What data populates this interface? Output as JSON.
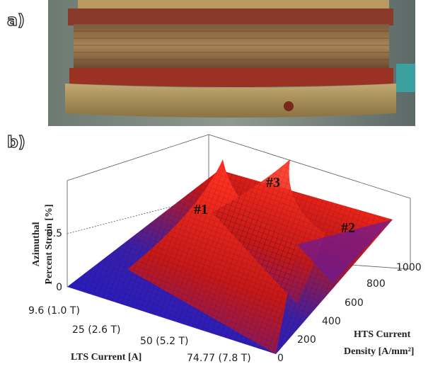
{
  "panels": [
    {
      "label": "a)"
    },
    {
      "label": "b)",
      "z_axis": {
        "title": [
          "Azimuthal",
          "Percent Strain [%]"
        ],
        "ticks": [
          "0.5",
          "0"
        ]
      },
      "x_axis": {
        "title": "LTS Current [A]",
        "ticks": [
          "9.6 (1.0 T)",
          "25 (2.6 T)",
          "50 (5.2 T)",
          "74.77 (7.8 T)"
        ]
      },
      "y_axis": {
        "title": [
          "HTS Current",
          "Density [A/mm²]"
        ],
        "ticks": [
          "0",
          "200",
          "400",
          "600",
          "800",
          "1000"
        ]
      },
      "annotations": [
        "#1",
        "#3",
        "#2"
      ]
    }
  ]
}
